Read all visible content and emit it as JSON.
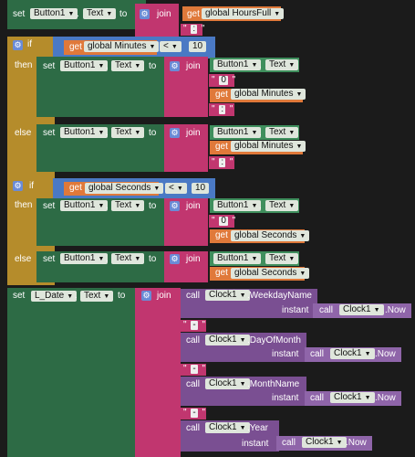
{
  "kw": {
    "set": "set",
    "to": "to",
    "join": "join",
    "get": "get",
    "if": "if",
    "then": "then",
    "else": "else",
    "call": "call",
    "instant": "instant",
    "dot": "."
  },
  "comp": {
    "button1": "Button1",
    "text": "Text",
    "l_date": "L_Date",
    "clock1": "Clock1"
  },
  "vars": {
    "hours_full": "global HoursFull",
    "minutes": "global Minutes",
    "seconds": "global Seconds"
  },
  "ops": {
    "lt": "<"
  },
  "nums": {
    "ten": "10"
  },
  "strings": {
    "colon": ":",
    "zero": "0",
    "dash": "-",
    "empty": ""
  },
  "methods": {
    "weekday": ".WeekdayName",
    "day": ".DayOfMonth",
    "month": ".MonthName",
    "year": ".Year",
    "now": ".Now"
  },
  "colors": {
    "control": "#b58c2b",
    "text_join": "#c1366f",
    "set": "#2d6b45",
    "get": "#e0793a",
    "compare": "#4a79c4",
    "clock": "#7a4f92"
  },
  "icons": {
    "gear": "gear-icon",
    "dropdown": "chevron-down-icon"
  }
}
